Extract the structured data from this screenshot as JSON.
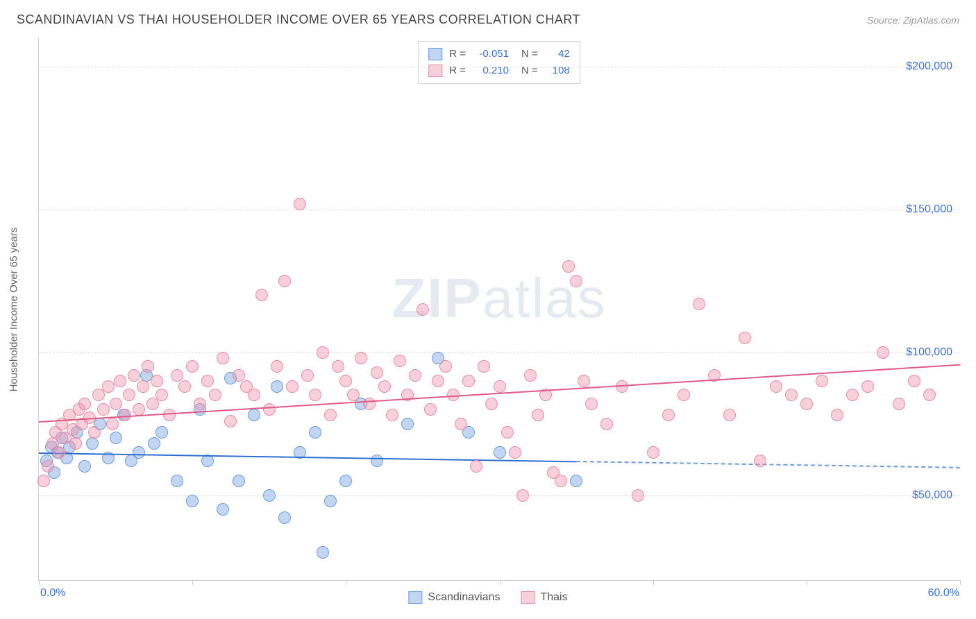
{
  "header": {
    "title": "SCANDINAVIAN VS THAI HOUSEHOLDER INCOME OVER 65 YEARS CORRELATION CHART",
    "source": "Source: ZipAtlas.com"
  },
  "chart": {
    "type": "scatter",
    "watermark": "ZIPatlas",
    "background_color": "#ffffff",
    "grid_color": "#dddddd",
    "axis_color": "#d0d0d0",
    "yaxis_label": "Householder Income Over 65 years",
    "label_fontsize": 15,
    "tick_fontsize": 16,
    "tick_color": "#3b6fd6",
    "xlim": [
      0,
      60
    ],
    "ylim": [
      20000,
      210000
    ],
    "yticks": [
      50000,
      100000,
      150000,
      200000
    ],
    "ytick_labels": [
      "$50,000",
      "$100,000",
      "$150,000",
      "$200,000"
    ],
    "xticks": [
      0,
      10,
      20,
      30,
      40,
      50,
      60
    ],
    "xaxis_labels": {
      "left": "0.0%",
      "right": "60.0%"
    },
    "marker_radius": 9,
    "series": [
      {
        "name": "Scandinavians",
        "fill_color": "rgba(120,165,225,0.45)",
        "stroke_color": "#6a9be0",
        "line_color": "#2f6fd0",
        "trend": {
          "x1": 0,
          "y1": 65000,
          "x2": 35,
          "y2": 62000,
          "dash_to_x": 60
        },
        "stats": {
          "R": "-0.051",
          "N": "42"
        },
        "points": [
          [
            0.5,
            62000
          ],
          [
            0.8,
            67000
          ],
          [
            1.0,
            58000
          ],
          [
            1.2,
            65000
          ],
          [
            1.5,
            70000
          ],
          [
            1.8,
            63000
          ],
          [
            2.0,
            67000
          ],
          [
            2.5,
            72000
          ],
          [
            3.0,
            60000
          ],
          [
            3.5,
            68000
          ],
          [
            4.0,
            75000
          ],
          [
            4.5,
            63000
          ],
          [
            5.0,
            70000
          ],
          [
            5.5,
            78000
          ],
          [
            6.0,
            62000
          ],
          [
            6.5,
            65000
          ],
          [
            7.0,
            92000
          ],
          [
            7.5,
            68000
          ],
          [
            8.0,
            72000
          ],
          [
            9.0,
            55000
          ],
          [
            10.0,
            48000
          ],
          [
            10.5,
            80000
          ],
          [
            11.0,
            62000
          ],
          [
            12.0,
            45000
          ],
          [
            12.5,
            91000
          ],
          [
            13.0,
            55000
          ],
          [
            14.0,
            78000
          ],
          [
            15.0,
            50000
          ],
          [
            15.5,
            88000
          ],
          [
            16.0,
            42000
          ],
          [
            17.0,
            65000
          ],
          [
            18.0,
            72000
          ],
          [
            18.5,
            30000
          ],
          [
            19.0,
            48000
          ],
          [
            20.0,
            55000
          ],
          [
            21.0,
            82000
          ],
          [
            22.0,
            62000
          ],
          [
            24.0,
            75000
          ],
          [
            26.0,
            98000
          ],
          [
            28.0,
            72000
          ],
          [
            30.0,
            65000
          ],
          [
            35.0,
            55000
          ]
        ]
      },
      {
        "name": "Thais",
        "fill_color": "rgba(240,150,175,0.45)",
        "stroke_color": "#e88aa5",
        "line_color": "#e05a85",
        "trend": {
          "x1": 0,
          "y1": 76000,
          "x2": 60,
          "y2": 96000
        },
        "stats": {
          "R": "0.210",
          "N": "108"
        },
        "points": [
          [
            0.3,
            55000
          ],
          [
            0.6,
            60000
          ],
          [
            0.9,
            68000
          ],
          [
            1.1,
            72000
          ],
          [
            1.3,
            65000
          ],
          [
            1.5,
            75000
          ],
          [
            1.7,
            70000
          ],
          [
            2.0,
            78000
          ],
          [
            2.2,
            73000
          ],
          [
            2.4,
            68000
          ],
          [
            2.6,
            80000
          ],
          [
            2.8,
            75000
          ],
          [
            3.0,
            82000
          ],
          [
            3.3,
            77000
          ],
          [
            3.6,
            72000
          ],
          [
            3.9,
            85000
          ],
          [
            4.2,
            80000
          ],
          [
            4.5,
            88000
          ],
          [
            4.8,
            75000
          ],
          [
            5.0,
            82000
          ],
          [
            5.3,
            90000
          ],
          [
            5.6,
            78000
          ],
          [
            5.9,
            85000
          ],
          [
            6.2,
            92000
          ],
          [
            6.5,
            80000
          ],
          [
            6.8,
            88000
          ],
          [
            7.1,
            95000
          ],
          [
            7.4,
            82000
          ],
          [
            7.7,
            90000
          ],
          [
            8.0,
            85000
          ],
          [
            8.5,
            78000
          ],
          [
            9.0,
            92000
          ],
          [
            9.5,
            88000
          ],
          [
            10.0,
            95000
          ],
          [
            10.5,
            82000
          ],
          [
            11.0,
            90000
          ],
          [
            11.5,
            85000
          ],
          [
            12.0,
            98000
          ],
          [
            12.5,
            76000
          ],
          [
            13.0,
            92000
          ],
          [
            13.5,
            88000
          ],
          [
            14.0,
            85000
          ],
          [
            14.5,
            120000
          ],
          [
            15.0,
            80000
          ],
          [
            15.5,
            95000
          ],
          [
            16.0,
            125000
          ],
          [
            16.5,
            88000
          ],
          [
            17.0,
            152000
          ],
          [
            17.5,
            92000
          ],
          [
            18.0,
            85000
          ],
          [
            18.5,
            100000
          ],
          [
            19.0,
            78000
          ],
          [
            19.5,
            95000
          ],
          [
            20.0,
            90000
          ],
          [
            20.5,
            85000
          ],
          [
            21.0,
            98000
          ],
          [
            21.5,
            82000
          ],
          [
            22.0,
            93000
          ],
          [
            22.5,
            88000
          ],
          [
            23.0,
            78000
          ],
          [
            23.5,
            97000
          ],
          [
            24.0,
            85000
          ],
          [
            24.5,
            92000
          ],
          [
            25.0,
            115000
          ],
          [
            25.5,
            80000
          ],
          [
            26.0,
            90000
          ],
          [
            26.5,
            95000
          ],
          [
            27.0,
            85000
          ],
          [
            27.5,
            75000
          ],
          [
            28.0,
            90000
          ],
          [
            28.5,
            60000
          ],
          [
            29.0,
            95000
          ],
          [
            29.5,
            82000
          ],
          [
            30.0,
            88000
          ],
          [
            30.5,
            72000
          ],
          [
            31.0,
            65000
          ],
          [
            31.5,
            50000
          ],
          [
            32.0,
            92000
          ],
          [
            32.5,
            78000
          ],
          [
            33.0,
            85000
          ],
          [
            33.5,
            58000
          ],
          [
            34.0,
            55000
          ],
          [
            34.5,
            130000
          ],
          [
            35.0,
            125000
          ],
          [
            35.5,
            90000
          ],
          [
            36.0,
            82000
          ],
          [
            37.0,
            75000
          ],
          [
            38.0,
            88000
          ],
          [
            39.0,
            50000
          ],
          [
            40.0,
            65000
          ],
          [
            41.0,
            78000
          ],
          [
            42.0,
            85000
          ],
          [
            43.0,
            117000
          ],
          [
            44.0,
            92000
          ],
          [
            45.0,
            78000
          ],
          [
            46.0,
            105000
          ],
          [
            47.0,
            62000
          ],
          [
            48.0,
            88000
          ],
          [
            49.0,
            85000
          ],
          [
            50.0,
            82000
          ],
          [
            51.0,
            90000
          ],
          [
            52.0,
            78000
          ],
          [
            53.0,
            85000
          ],
          [
            54.0,
            88000
          ],
          [
            55.0,
            100000
          ],
          [
            56.0,
            82000
          ],
          [
            57.0,
            90000
          ],
          [
            58.0,
            85000
          ]
        ]
      }
    ]
  },
  "bottom_legend": {
    "items": [
      "Scandinavians",
      "Thais"
    ]
  }
}
